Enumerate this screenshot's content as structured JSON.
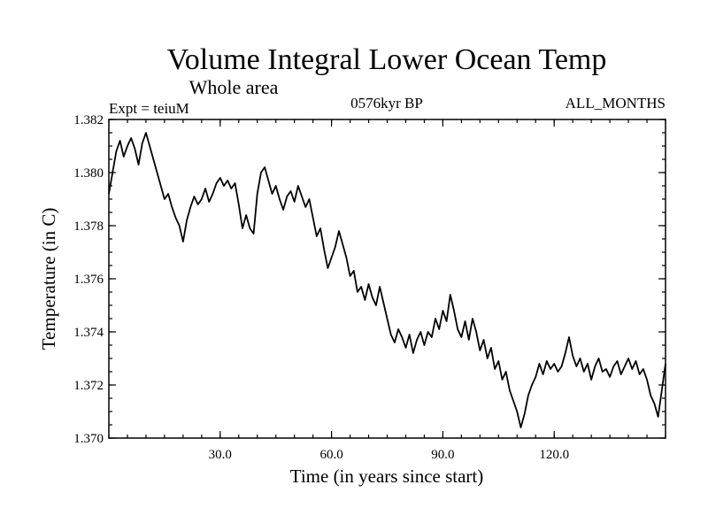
{
  "chart_data": {
    "type": "line",
    "title": "Volume Integral Lower Ocean Temp",
    "subtitle": "Whole area",
    "left_label": "Expt = teiuM",
    "center_label": "0576kyr BP",
    "right_label": "ALL_MONTHS",
    "xlabel": "Time (in years since start)",
    "ylabel": "Temperature (in C)",
    "xlim": [
      0,
      150
    ],
    "ylim": [
      1.37,
      1.382
    ],
    "xticks": [
      30,
      60,
      90,
      120
    ],
    "xtick_labels": [
      "30.0",
      "60.0",
      "90.0",
      "120.0"
    ],
    "yticks": [
      1.37,
      1.372,
      1.374,
      1.376,
      1.378,
      1.38,
      1.382
    ],
    "ytick_labels": [
      "1.370",
      "1.372",
      "1.374",
      "1.376",
      "1.378",
      "1.380",
      "1.382"
    ],
    "grid": false,
    "series": [
      {
        "name": "Volume Integral Lower Ocean Temp",
        "x": [
          0,
          1,
          2,
          3,
          4,
          5,
          6,
          7,
          8,
          9,
          10,
          11,
          12,
          13,
          14,
          15,
          16,
          17,
          18,
          19,
          20,
          21,
          22,
          23,
          24,
          25,
          26,
          27,
          28,
          29,
          30,
          31,
          32,
          33,
          34,
          35,
          36,
          37,
          38,
          39,
          40,
          41,
          42,
          43,
          44,
          45,
          46,
          47,
          48,
          49,
          50,
          51,
          52,
          53,
          54,
          55,
          56,
          57,
          58,
          59,
          60,
          61,
          62,
          63,
          64,
          65,
          66,
          67,
          68,
          69,
          70,
          71,
          72,
          73,
          74,
          75,
          76,
          77,
          78,
          79,
          80,
          81,
          82,
          83,
          84,
          85,
          86,
          87,
          88,
          89,
          90,
          91,
          92,
          93,
          94,
          95,
          96,
          97,
          98,
          99,
          100,
          101,
          102,
          103,
          104,
          105,
          106,
          107,
          108,
          109,
          110,
          111,
          112,
          113,
          114,
          115,
          116,
          117,
          118,
          119,
          120,
          121,
          122,
          123,
          124,
          125,
          126,
          127,
          128,
          129,
          130,
          131,
          132,
          133,
          134,
          135,
          136,
          137,
          138,
          139,
          140,
          141,
          142,
          143,
          144,
          145,
          146,
          147,
          148,
          149,
          150
        ],
        "values": [
          1.3792,
          1.38,
          1.3808,
          1.3812,
          1.3806,
          1.381,
          1.3813,
          1.3809,
          1.3803,
          1.3811,
          1.3815,
          1.381,
          1.3805,
          1.38,
          1.3795,
          1.379,
          1.3792,
          1.3787,
          1.3783,
          1.378,
          1.3774,
          1.3782,
          1.3787,
          1.3791,
          1.3788,
          1.379,
          1.3794,
          1.3789,
          1.3792,
          1.3796,
          1.3798,
          1.3795,
          1.3797,
          1.3794,
          1.3796,
          1.3788,
          1.3779,
          1.3784,
          1.3779,
          1.3777,
          1.3792,
          1.38,
          1.3802,
          1.3797,
          1.3792,
          1.3795,
          1.379,
          1.3786,
          1.3791,
          1.3793,
          1.3789,
          1.3795,
          1.3791,
          1.3787,
          1.379,
          1.3783,
          1.3776,
          1.3779,
          1.3771,
          1.3764,
          1.3768,
          1.3772,
          1.3778,
          1.3773,
          1.3768,
          1.3761,
          1.3763,
          1.3755,
          1.3757,
          1.3752,
          1.3758,
          1.3753,
          1.375,
          1.3757,
          1.3751,
          1.3745,
          1.3739,
          1.3736,
          1.3741,
          1.3738,
          1.3734,
          1.3739,
          1.3732,
          1.3737,
          1.374,
          1.3735,
          1.374,
          1.3738,
          1.3745,
          1.3741,
          1.3748,
          1.3744,
          1.3754,
          1.3748,
          1.3741,
          1.3738,
          1.3744,
          1.3737,
          1.3745,
          1.374,
          1.3733,
          1.3737,
          1.373,
          1.3734,
          1.3726,
          1.3729,
          1.3722,
          1.3725,
          1.3718,
          1.3714,
          1.371,
          1.3704,
          1.3709,
          1.3716,
          1.372,
          1.3723,
          1.3728,
          1.3724,
          1.3729,
          1.3726,
          1.3728,
          1.3725,
          1.3727,
          1.3732,
          1.3738,
          1.3731,
          1.3727,
          1.373,
          1.3725,
          1.3728,
          1.3722,
          1.3727,
          1.373,
          1.3725,
          1.3726,
          1.3723,
          1.3727,
          1.3729,
          1.3724,
          1.3727,
          1.373,
          1.3726,
          1.3729,
          1.3724,
          1.3726,
          1.3722,
          1.3716,
          1.3713,
          1.3708,
          1.3718,
          1.3728
        ]
      }
    ]
  }
}
